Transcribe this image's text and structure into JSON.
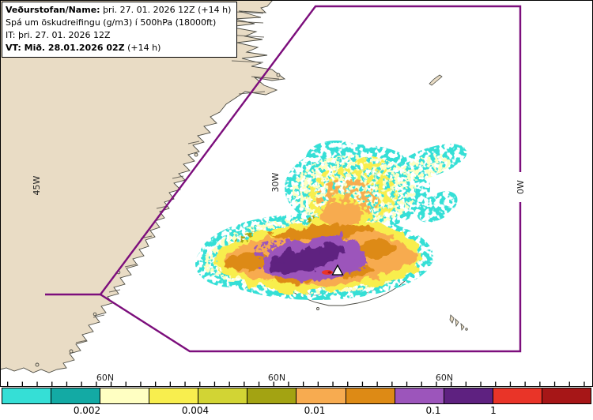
{
  "info_box": {
    "line1_label": "Veðurstofan/Name:",
    "line1_value": "þri. 27. 01. 2026 12Z (+14 h)",
    "line2": "Spá um öskudreifingu (g/m3) í 500hPa (18000ft)",
    "line3": "IT: þri. 27. 01. 2026 12Z",
    "line4_label": "VT: Mið. 28.01.2026 02Z",
    "line4_value": "(+14 h)"
  },
  "map": {
    "meridian_labels": [
      "45W",
      "30W",
      "0W"
    ],
    "parallel_labels": [
      "60N",
      "60N",
      "60N"
    ],
    "land_color": "#e9dcc5",
    "boundary_color": "#7c0e7c"
  },
  "legend": {
    "colors": [
      "#35dfd6",
      "#13aaa4",
      "#ffffc2",
      "#f8ee4e",
      "#d2d434",
      "#a3a312",
      "#f7ab50",
      "#dd8a15",
      "#9c55bb",
      "#5e2180",
      "#e93428",
      "#a61617"
    ],
    "labels": [
      "0.002",
      "0.004",
      "0.01",
      "0.1",
      "1"
    ]
  }
}
